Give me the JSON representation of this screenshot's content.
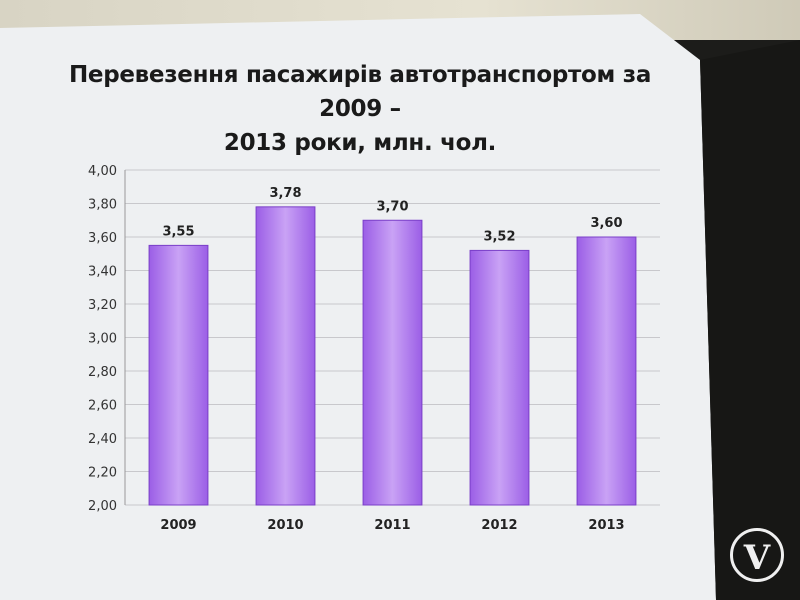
{
  "chart_data": {
    "type": "bar",
    "title": "Перевезення пасажирів автотранспортом за 2009 – 2013 роки, млн. чол.",
    "title_line1": "Перевезення пасажирів автотранспортом за 2009 –",
    "title_line2": "2013 роки, млн. чол.",
    "categories": [
      "2009",
      "2010",
      "2011",
      "2012",
      "2013"
    ],
    "values": [
      3.55,
      3.78,
      3.7,
      3.52,
      3.6
    ],
    "data_labels": [
      "3,55",
      "3,78",
      "3,70",
      "3,52",
      "3,60"
    ],
    "ylim": [
      2.0,
      4.0
    ],
    "yticks": [
      "2,00",
      "2,20",
      "2,40",
      "2,60",
      "2,80",
      "3,00",
      "3,20",
      "3,40",
      "3,60",
      "3,80",
      "4,00"
    ],
    "xlabel": "",
    "ylabel": "",
    "grid": true,
    "bar_color": "#9b5ee6",
    "bar_color_light": "#c9a2f5"
  },
  "logo": {
    "text": "V"
  }
}
